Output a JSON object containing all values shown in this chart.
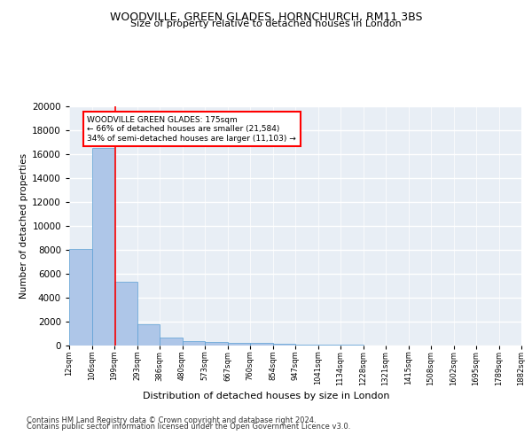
{
  "title1": "WOODVILLE, GREEN GLADES, HORNCHURCH, RM11 3BS",
  "title2": "Size of property relative to detached houses in London",
  "xlabel": "Distribution of detached houses by size in London",
  "ylabel": "Number of detached properties",
  "bar_values": [
    8100,
    16500,
    5300,
    1750,
    700,
    400,
    300,
    250,
    200,
    130,
    80,
    60,
    40,
    30,
    20,
    15,
    10,
    8,
    5,
    3
  ],
  "bar_color": "#aec6e8",
  "bar_edge_color": "#5a9fd4",
  "x_labels": [
    "12sqm",
    "106sqm",
    "199sqm",
    "293sqm",
    "386sqm",
    "480sqm",
    "573sqm",
    "667sqm",
    "760sqm",
    "854sqm",
    "947sqm",
    "1041sqm",
    "1134sqm",
    "1228sqm",
    "1321sqm",
    "1415sqm",
    "1508sqm",
    "1602sqm",
    "1695sqm",
    "1789sqm",
    "1882sqm"
  ],
  "ylim": [
    0,
    20000
  ],
  "yticks": [
    0,
    2000,
    4000,
    6000,
    8000,
    10000,
    12000,
    14000,
    16000,
    18000,
    20000
  ],
  "red_line_x": 1.55,
  "annotation_text": "WOODVILLE GREEN GLADES: 175sqm\n← 66% of detached houses are smaller (21,584)\n34% of semi-detached houses are larger (11,103) →",
  "footer1": "Contains HM Land Registry data © Crown copyright and database right 2024.",
  "footer2": "Contains public sector information licensed under the Open Government Licence v3.0.",
  "bg_color": "#e8eef5",
  "grid_color": "#ffffff"
}
